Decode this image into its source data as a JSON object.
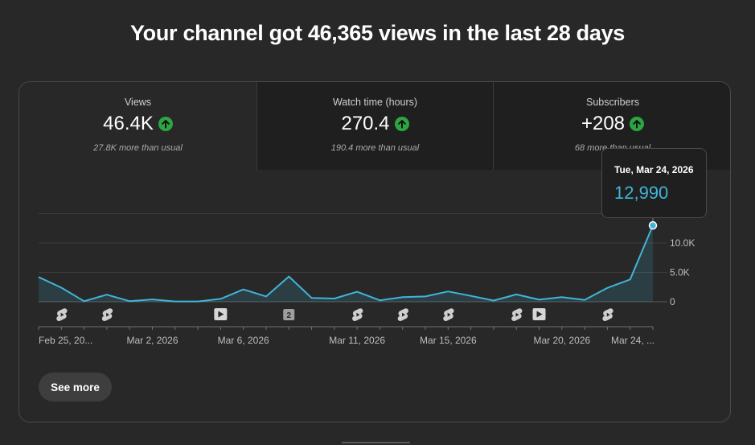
{
  "headline": "Your channel got 46,365 views in the last 28 days",
  "tabs": [
    {
      "label": "Views",
      "value": "46.4K",
      "sub": "27.8K more than usual",
      "trend_icon": "arrow-up-icon"
    },
    {
      "label": "Watch time (hours)",
      "value": "270.4",
      "sub": "190.4 more than usual",
      "trend_icon": "arrow-up-icon"
    },
    {
      "label": "Subscribers",
      "value": "+208",
      "sub": "68 more than usual",
      "trend_icon": "arrow-up-icon"
    }
  ],
  "tooltip": {
    "date": "Tue, Mar 24, 2026",
    "value": "12,990"
  },
  "see_more_label": "See more",
  "colors": {
    "line": "#41b4d8",
    "trend_up": "#2ba640",
    "background": "#282828"
  },
  "chart_data": {
    "type": "area",
    "y_ticks": [
      "0",
      "5.0K",
      "10.0K"
    ],
    "ylim": [
      0,
      15000
    ],
    "y_tick_values": [
      0,
      5000,
      10000
    ],
    "x_tick_labels": [
      {
        "index": 0,
        "label": "Feb 25, 20..."
      },
      {
        "index": 5,
        "label": "Mar 2, 2026"
      },
      {
        "index": 9,
        "label": "Mar 6, 2026"
      },
      {
        "index": 14,
        "label": "Mar 11, 2026"
      },
      {
        "index": 18,
        "label": "Mar 15, 2026"
      },
      {
        "index": 23,
        "label": "Mar 20, 2026"
      },
      {
        "index": 27,
        "label": "Mar 24, ..."
      }
    ],
    "dates": [
      "Feb 25",
      "Feb 26",
      "Feb 27",
      "Feb 28",
      "Mar 1",
      "Mar 2",
      "Mar 3",
      "Mar 4",
      "Mar 5",
      "Mar 6",
      "Mar 7",
      "Mar 8",
      "Mar 9",
      "Mar 10",
      "Mar 11",
      "Mar 12",
      "Mar 13",
      "Mar 14",
      "Mar 15",
      "Mar 16",
      "Mar 17",
      "Mar 18",
      "Mar 19",
      "Mar 20",
      "Mar 21",
      "Mar 22",
      "Mar 23",
      "Mar 24"
    ],
    "values": [
      4200,
      2400,
      100,
      1200,
      100,
      400,
      50,
      50,
      500,
      2100,
      900,
      4300,
      650,
      550,
      1700,
      250,
      800,
      900,
      1750,
      1000,
      200,
      1250,
      350,
      800,
      300,
      2350,
      3800,
      12990
    ],
    "highlight_index": 27,
    "markers": [
      {
        "index": 1,
        "type": "shorts"
      },
      {
        "index": 3,
        "type": "shorts"
      },
      {
        "index": 8,
        "type": "video"
      },
      {
        "index": 11,
        "type": "count",
        "label": "2"
      },
      {
        "index": 14,
        "type": "shorts"
      },
      {
        "index": 16,
        "type": "shorts"
      },
      {
        "index": 18,
        "type": "shorts"
      },
      {
        "index": 21,
        "type": "shorts"
      },
      {
        "index": 22,
        "type": "video"
      },
      {
        "index": 25,
        "type": "shorts"
      }
    ]
  }
}
